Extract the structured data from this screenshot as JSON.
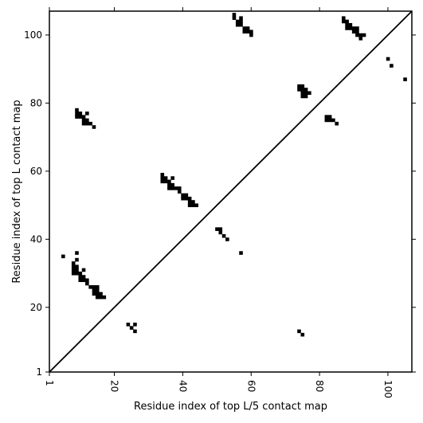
{
  "chart_data": {
    "type": "scatter",
    "xlabel": "Residue index of top L/5 contact map",
    "ylabel": "Residue index of top L contact map",
    "xlim": [
      1,
      107
    ],
    "ylim": [
      1,
      107
    ],
    "x_ticks": [
      1,
      20,
      40,
      60,
      80,
      100
    ],
    "y_ticks": [
      1,
      20,
      40,
      60,
      80,
      100
    ],
    "x_tick_rotation": -90,
    "grid": false,
    "diagonal_line": true,
    "marker": "square",
    "marker_color": "#000000",
    "series": [
      {
        "name": "",
        "points": [
          [
            55,
            106
          ],
          [
            55,
            105
          ],
          [
            56,
            104
          ],
          [
            56,
            103
          ],
          [
            57,
            105
          ],
          [
            57,
            104
          ],
          [
            57,
            103
          ],
          [
            58,
            102
          ],
          [
            58,
            101
          ],
          [
            59,
            102
          ],
          [
            59,
            101
          ],
          [
            60,
            101
          ],
          [
            60,
            100
          ],
          [
            87,
            105
          ],
          [
            87,
            104
          ],
          [
            88,
            104
          ],
          [
            88,
            103
          ],
          [
            88,
            102
          ],
          [
            89,
            103
          ],
          [
            89,
            102
          ],
          [
            90,
            102
          ],
          [
            90,
            101
          ],
          [
            91,
            102
          ],
          [
            91,
            101
          ],
          [
            91,
            100
          ],
          [
            92,
            100
          ],
          [
            92,
            99
          ],
          [
            93,
            100
          ],
          [
            100,
            93
          ],
          [
            101,
            91
          ],
          [
            105,
            87
          ],
          [
            74,
            85
          ],
          [
            74,
            84
          ],
          [
            75,
            85
          ],
          [
            75,
            84
          ],
          [
            75,
            83
          ],
          [
            75,
            82
          ],
          [
            76,
            84
          ],
          [
            76,
            83
          ],
          [
            76,
            82
          ],
          [
            77,
            83
          ],
          [
            82,
            76
          ],
          [
            82,
            75
          ],
          [
            83,
            76
          ],
          [
            83,
            75
          ],
          [
            84,
            75
          ],
          [
            85,
            74
          ],
          [
            9,
            78
          ],
          [
            9,
            77
          ],
          [
            9,
            76
          ],
          [
            10,
            77
          ],
          [
            10,
            76
          ],
          [
            11,
            76
          ],
          [
            11,
            75
          ],
          [
            11,
            74
          ],
          [
            12,
            77
          ],
          [
            12,
            75
          ],
          [
            12,
            74
          ],
          [
            13,
            74
          ],
          [
            14,
            73
          ],
          [
            34,
            59
          ],
          [
            34,
            58
          ],
          [
            34,
            57
          ],
          [
            35,
            58
          ],
          [
            35,
            57
          ],
          [
            36,
            57
          ],
          [
            36,
            56
          ],
          [
            36,
            55
          ],
          [
            37,
            58
          ],
          [
            37,
            56
          ],
          [
            37,
            55
          ],
          [
            38,
            55
          ],
          [
            39,
            55
          ],
          [
            39,
            54
          ],
          [
            40,
            53
          ],
          [
            40,
            52
          ],
          [
            41,
            53
          ],
          [
            41,
            52
          ],
          [
            42,
            52
          ],
          [
            42,
            51
          ],
          [
            42,
            50
          ],
          [
            43,
            51
          ],
          [
            43,
            50
          ],
          [
            44,
            50
          ],
          [
            50,
            43
          ],
          [
            51,
            43
          ],
          [
            51,
            42
          ],
          [
            52,
            41
          ],
          [
            53,
            40
          ],
          [
            57,
            36
          ],
          [
            5,
            35
          ],
          [
            9,
            36
          ],
          [
            9,
            34
          ],
          [
            8,
            33
          ],
          [
            8,
            32
          ],
          [
            8,
            31
          ],
          [
            8,
            30
          ],
          [
            9,
            32
          ],
          [
            9,
            31
          ],
          [
            9,
            30
          ],
          [
            10,
            30
          ],
          [
            10,
            29
          ],
          [
            10,
            28
          ],
          [
            11,
            31
          ],
          [
            11,
            29
          ],
          [
            11,
            28
          ],
          [
            12,
            28
          ],
          [
            12,
            27
          ],
          [
            13,
            26
          ],
          [
            14,
            26
          ],
          [
            14,
            25
          ],
          [
            14,
            24
          ],
          [
            15,
            26
          ],
          [
            15,
            25
          ],
          [
            15,
            24
          ],
          [
            15,
            23
          ],
          [
            16,
            24
          ],
          [
            16,
            23
          ],
          [
            17,
            23
          ],
          [
            24,
            15
          ],
          [
            25,
            14
          ],
          [
            26,
            15
          ],
          [
            26,
            13
          ],
          [
            74,
            13
          ],
          [
            75,
            12
          ]
        ]
      }
    ]
  }
}
